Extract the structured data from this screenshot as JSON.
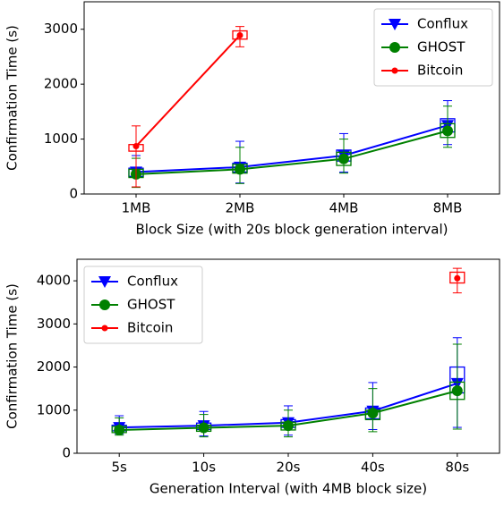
{
  "chart_data": [
    {
      "type": "line",
      "ylabel": "Confirmation Time (s)",
      "xlabel": "Block Size (with 20s block generation interval)",
      "categories": [
        "1MB",
        "2MB",
        "4MB",
        "8MB"
      ],
      "ylim": [
        0,
        3500
      ],
      "yticks": [
        0,
        1000,
        2000,
        3000
      ],
      "legend": "upper right",
      "series": [
        {
          "name": "Conflux",
          "color": "#0000ff",
          "marker": "triangle",
          "values": [
            400,
            490,
            700,
            1250
          ],
          "box_low": [
            320,
            400,
            600,
            1130
          ],
          "box_high": [
            470,
            560,
            800,
            1370
          ],
          "whisker_low": [
            130,
            200,
            400,
            900
          ],
          "whisker_high": [
            700,
            960,
            1100,
            1700
          ]
        },
        {
          "name": "GHOST",
          "color": "#008000",
          "marker": "circle",
          "values": [
            360,
            450,
            640,
            1150
          ],
          "box_low": [
            300,
            380,
            520,
            1030
          ],
          "box_high": [
            450,
            540,
            760,
            1280
          ],
          "whisker_low": [
            120,
            190,
            380,
            850
          ],
          "whisker_high": [
            650,
            850,
            1000,
            1600
          ]
        },
        {
          "name": "Bitcoin",
          "color": "#ff0000",
          "marker": "dot",
          "values": [
            870,
            2890,
            null,
            null
          ],
          "box_low": [
            780,
            2820,
            null,
            null
          ],
          "box_high": [
            900,
            2970,
            null,
            null
          ],
          "whisker_low": [
            130,
            2680,
            null,
            null
          ],
          "whisker_high": [
            1240,
            3050,
            null,
            null
          ]
        }
      ]
    },
    {
      "type": "line",
      "ylabel": "Confirmation Time (s)",
      "xlabel": "Generation Interval (with 4MB block size)",
      "categories": [
        "5s",
        "10s",
        "20s",
        "40s",
        "80s"
      ],
      "ylim": [
        0,
        4500
      ],
      "yticks": [
        0,
        1000,
        2000,
        3000,
        4000
      ],
      "legend": "upper left",
      "series": [
        {
          "name": "Conflux",
          "color": "#0000ff",
          "marker": "triangle",
          "values": [
            600,
            640,
            710,
            980,
            1620
          ],
          "box_low": [
            520,
            550,
            600,
            800,
            1400
          ],
          "box_high": [
            650,
            700,
            780,
            1050,
            2000
          ],
          "whisker_low": [
            450,
            400,
            420,
            550,
            600
          ],
          "whisker_high": [
            870,
            970,
            1100,
            1640,
            2680
          ]
        },
        {
          "name": "GHOST",
          "color": "#008000",
          "marker": "circle",
          "values": [
            540,
            590,
            640,
            930,
            1450
          ],
          "box_low": [
            480,
            510,
            540,
            780,
            1250
          ],
          "box_high": [
            620,
            650,
            720,
            1000,
            1650
          ],
          "whisker_low": [
            420,
            380,
            380,
            500,
            560
          ],
          "whisker_high": [
            820,
            900,
            1000,
            1500,
            2530
          ]
        },
        {
          "name": "Bitcoin",
          "color": "#ff0000",
          "marker": "dot",
          "values": [
            null,
            null,
            null,
            null,
            4060
          ],
          "box_low": [
            null,
            null,
            null,
            null,
            3950
          ],
          "box_high": [
            null,
            null,
            null,
            null,
            4200
          ],
          "whisker_low": [
            null,
            null,
            null,
            null,
            3720
          ],
          "whisker_high": [
            null,
            null,
            null,
            null,
            4290
          ]
        }
      ]
    }
  ]
}
